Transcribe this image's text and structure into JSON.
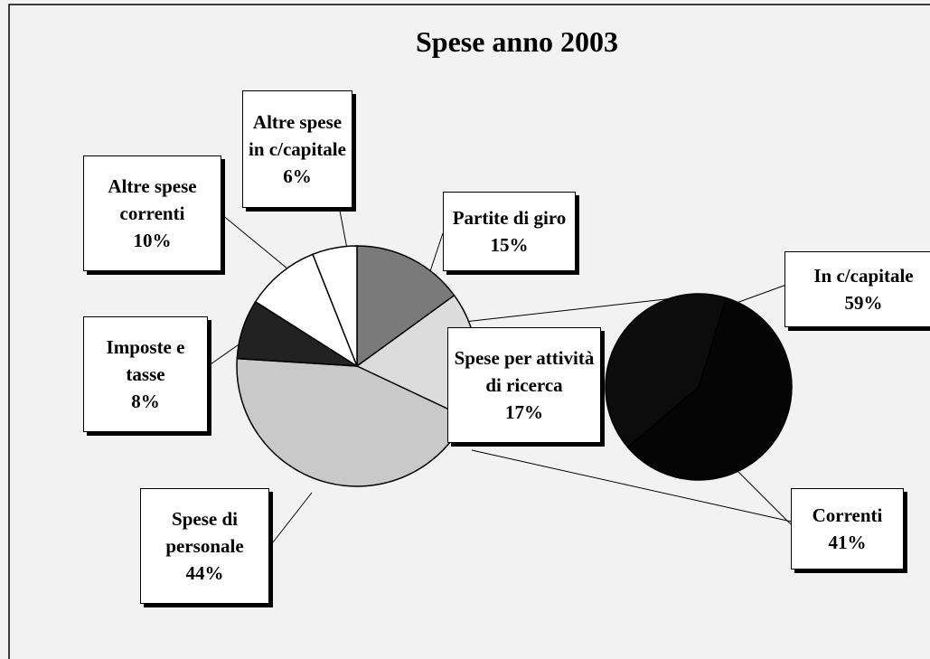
{
  "chart_data": {
    "type": "pie-of-pie",
    "title": "Spese anno 2003",
    "categories": [
      "Partite di giro",
      "Spese per attività di ricerca",
      "Spese di personale",
      "Imposte e tasse",
      "Altre spese correnti",
      "Altre spese in c/capitale"
    ],
    "values": [
      15,
      17,
      44,
      8,
      10,
      6
    ],
    "value_labels": [
      "15%",
      "17%",
      "44%",
      "8%",
      "10%",
      "6%"
    ],
    "colors": [
      "#7a7a7a",
      "#dcdcdc",
      "#c9c9c9",
      "#222222",
      "#ffffff",
      "#ffffff"
    ],
    "breakdown": {
      "categories": [
        "In c/capitale",
        "Correnti"
      ],
      "values": [
        59,
        41
      ],
      "value_labels": [
        "59%",
        "41%"
      ],
      "colors": [
        "#050505",
        "#0c0c0c"
      ]
    }
  }
}
